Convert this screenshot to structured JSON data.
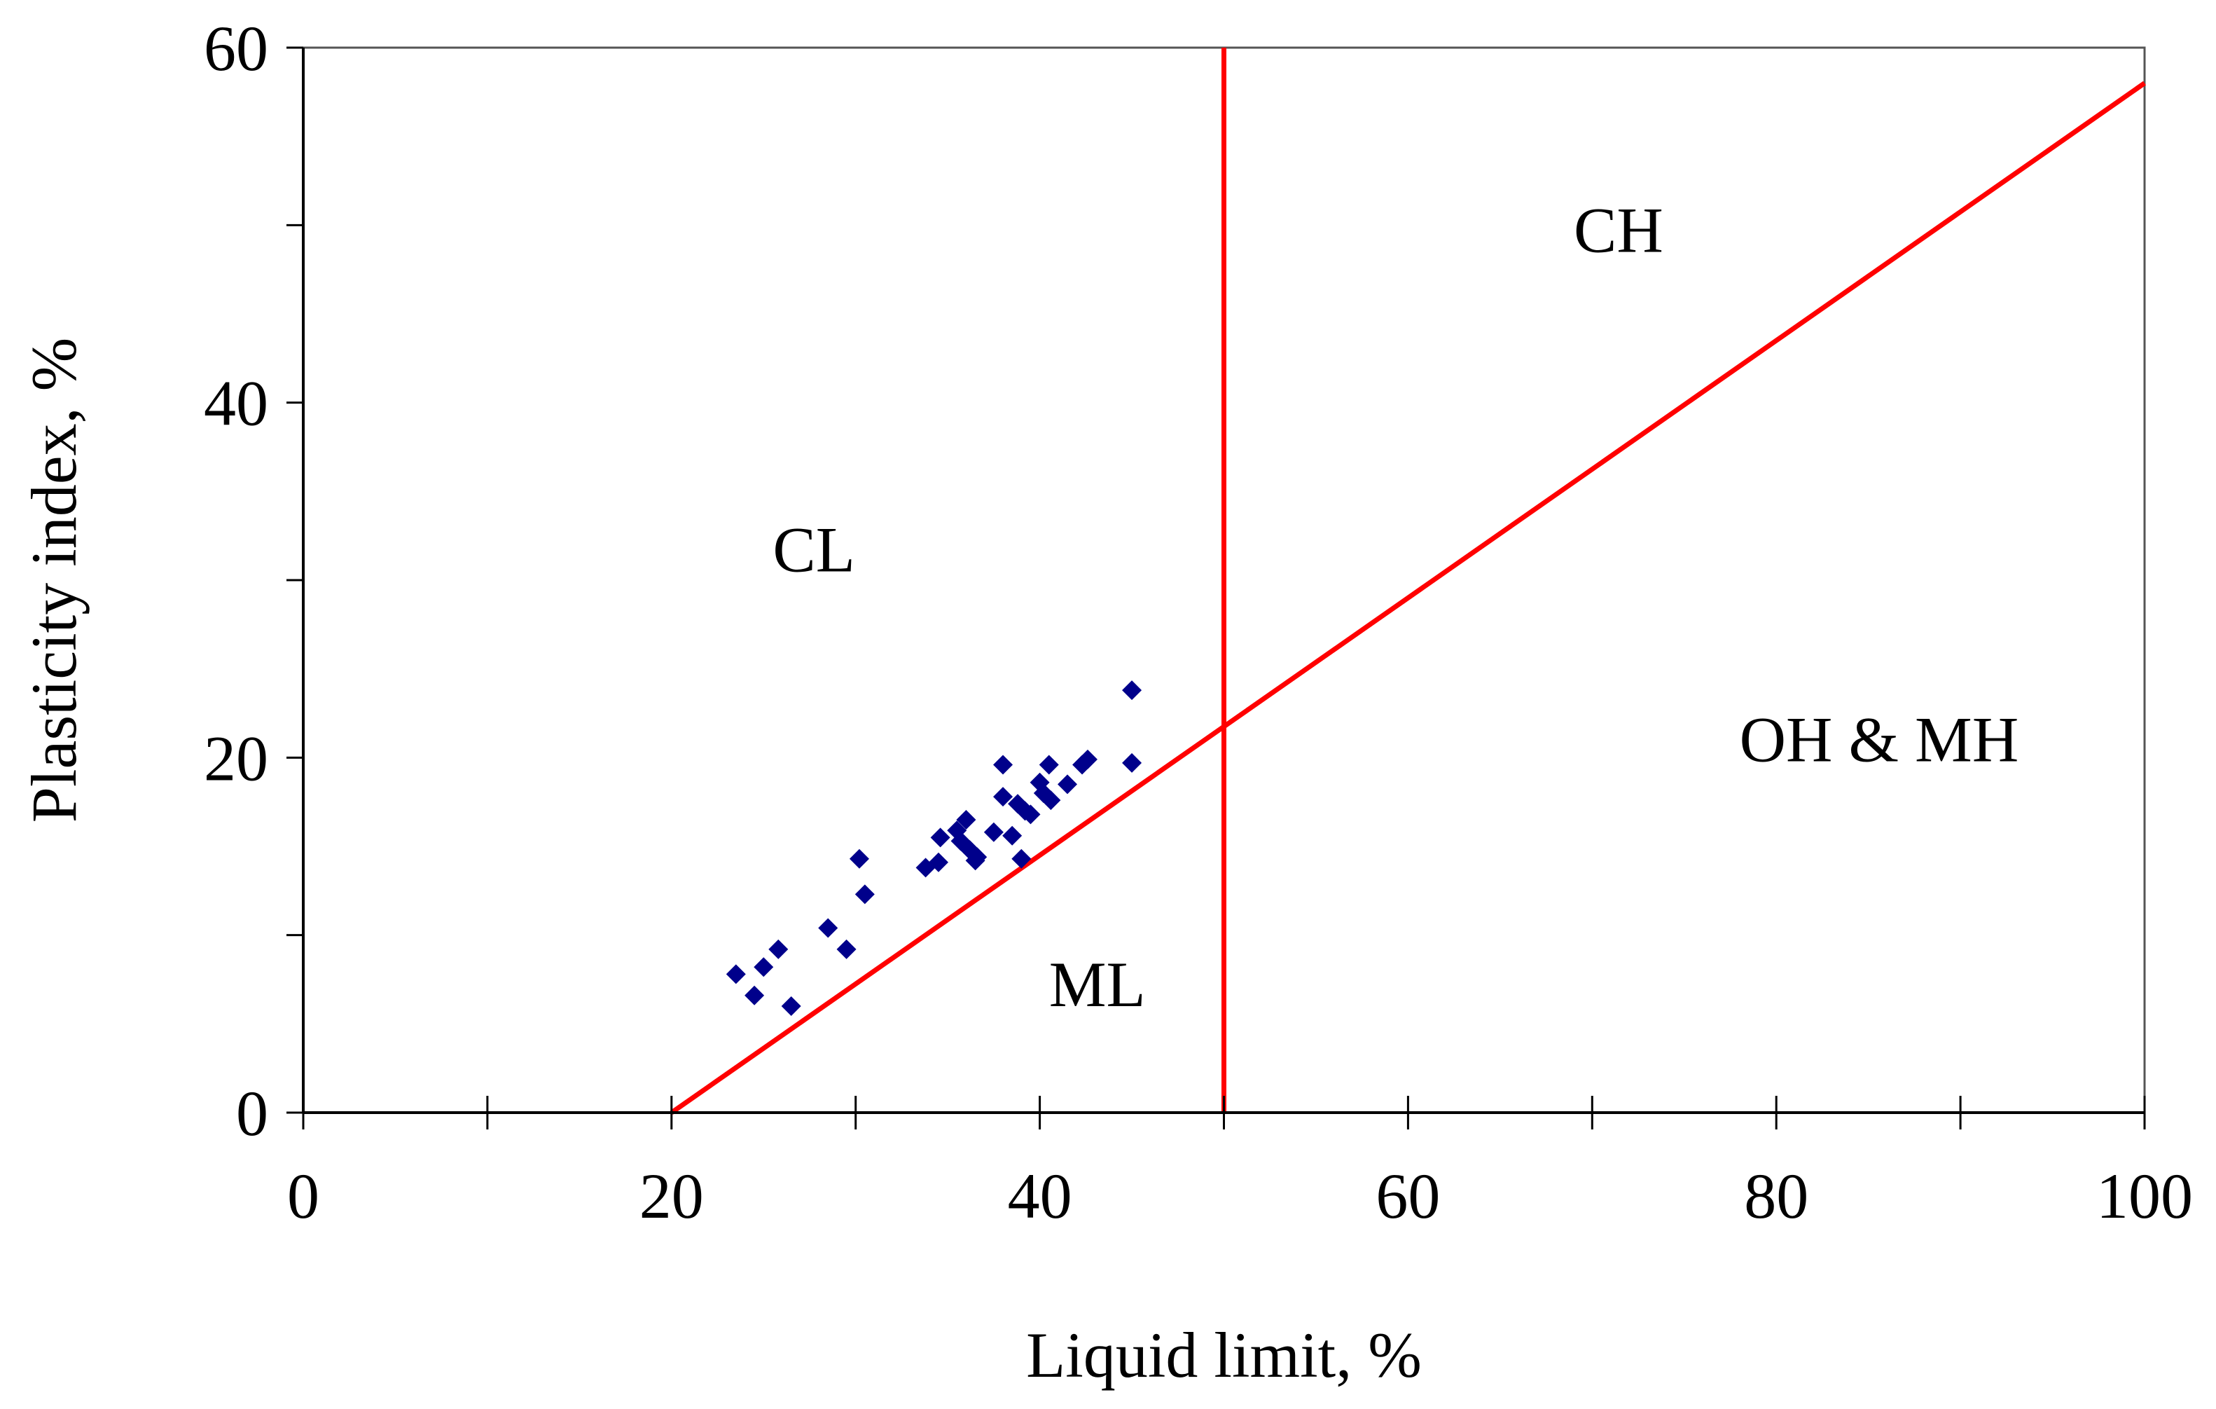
{
  "chart_data": {
    "type": "scatter",
    "title": "",
    "xlabel": "Liquid limit, %",
    "ylabel": "Plasticity index, %",
    "xlim": [
      0,
      100
    ],
    "ylim": [
      0,
      60
    ],
    "x_ticks": [
      0,
      20,
      40,
      60,
      80,
      100
    ],
    "y_ticks": [
      0,
      20,
      40,
      60
    ],
    "x_minor_ticks": [
      10,
      30,
      50,
      70,
      90
    ],
    "y_minor_ticks": [
      10,
      30,
      50
    ],
    "grid": false,
    "legend": "none",
    "colors": {
      "points": "#00008B",
      "lines": "#FF0000",
      "axes": "#000000"
    },
    "series": [
      {
        "marker": "diamond",
        "points": [
          [
            23.5,
            7.8
          ],
          [
            24.5,
            6.6
          ],
          [
            25.0,
            8.2
          ],
          [
            25.8,
            9.2
          ],
          [
            26.5,
            6.0
          ],
          [
            28.5,
            10.4
          ],
          [
            29.5,
            9.2
          ],
          [
            30.2,
            14.3
          ],
          [
            30.5,
            12.3
          ],
          [
            33.8,
            13.8
          ],
          [
            34.5,
            14.1
          ],
          [
            34.6,
            15.5
          ],
          [
            35.5,
            15.9
          ],
          [
            35.7,
            15.3
          ],
          [
            36.0,
            16.5
          ],
          [
            36.2,
            14.8
          ],
          [
            36.5,
            14.2
          ],
          [
            36.6,
            14.4
          ],
          [
            37.5,
            15.8
          ],
          [
            38.0,
            19.6
          ],
          [
            38.0,
            17.8
          ],
          [
            38.5,
            15.6
          ],
          [
            38.8,
            17.4
          ],
          [
            39.0,
            14.3
          ],
          [
            39.2,
            17.0
          ],
          [
            39.5,
            16.8
          ],
          [
            40.0,
            18.6
          ],
          [
            40.2,
            18.0
          ],
          [
            40.5,
            19.6
          ],
          [
            40.6,
            17.6
          ],
          [
            41.5,
            18.5
          ],
          [
            42.3,
            19.6
          ],
          [
            42.6,
            19.9
          ],
          [
            45.0,
            23.8
          ],
          [
            45.0,
            19.7
          ]
        ]
      }
    ],
    "lines": [
      {
        "from": [
          20,
          0
        ],
        "to": [
          100,
          58
        ]
      },
      {
        "from": [
          50,
          0
        ],
        "to": [
          50,
          60
        ]
      }
    ],
    "annotations": [
      {
        "text": "CH",
        "x": 69.0,
        "y": 48.5
      },
      {
        "text": "CL",
        "x": 25.5,
        "y": 30.5
      },
      {
        "text": "OH & MH",
        "x": 78.0,
        "y": 19.8
      },
      {
        "text": "ML",
        "x": 40.5,
        "y": 6.0
      }
    ]
  }
}
